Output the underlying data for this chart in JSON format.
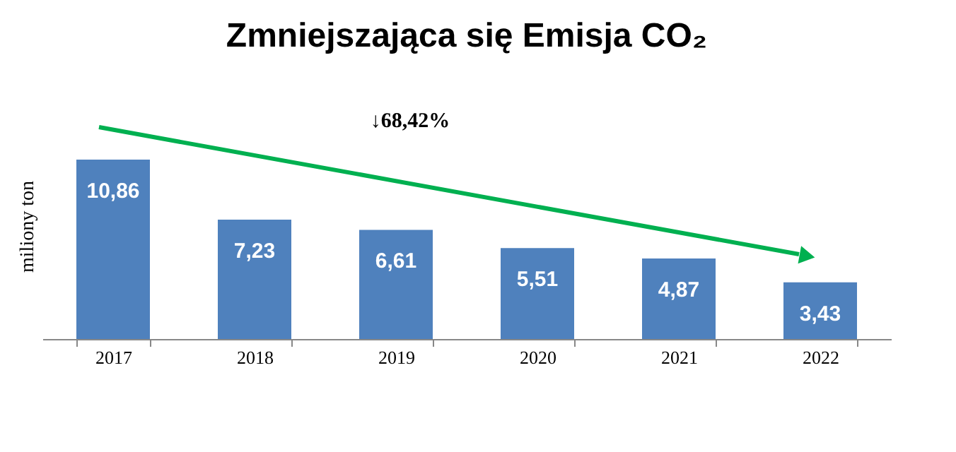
{
  "chart_data": {
    "type": "bar",
    "title": "Zmniejszająca się Emisja CO₂",
    "ylabel": "miliony ton",
    "categories": [
      "2017",
      "2018",
      "2019",
      "2020",
      "2021",
      "2022"
    ],
    "values": [
      10.86,
      7.23,
      6.61,
      5.51,
      4.87,
      3.43
    ],
    "value_labels": [
      "10,86",
      "7,23",
      "6,61",
      "5,51",
      "4,87",
      "3,43"
    ],
    "color": "#4f81bd",
    "grid": false,
    "annotations": [
      "↓68,42%"
    ]
  }
}
